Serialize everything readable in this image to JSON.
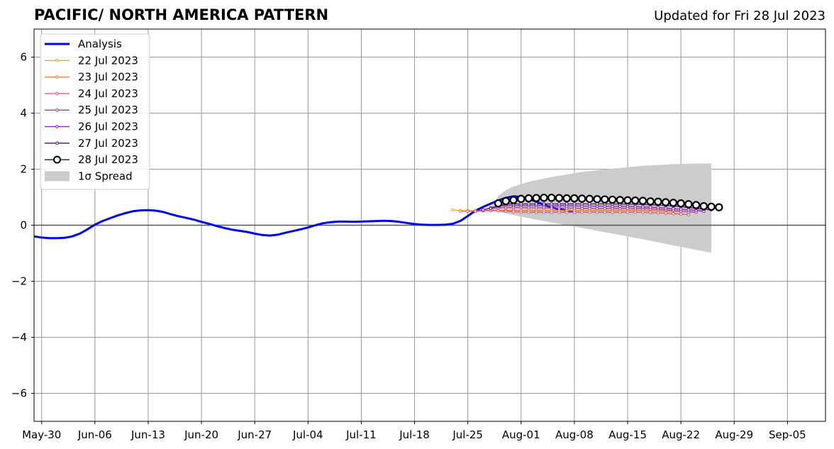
{
  "title": "PACIFIC/ NORTH AMERICA PATTERN",
  "subtitle": "Updated for Fri 28 Jul 2023",
  "chart_data": {
    "type": "line",
    "ylim": [
      -7,
      7
    ],
    "yticks": [
      6,
      4,
      2,
      0,
      -2,
      -4,
      -6
    ],
    "ytick_labels": [
      "6",
      "4",
      "2",
      "0",
      "−2",
      "−4",
      "−6"
    ],
    "xlim": [
      "2023-05-29",
      "2023-09-10"
    ],
    "xticks": [
      "2023-05-30",
      "2023-06-06",
      "2023-06-13",
      "2023-06-20",
      "2023-06-27",
      "2023-07-04",
      "2023-07-11",
      "2023-07-18",
      "2023-07-25",
      "2023-08-01",
      "2023-08-08",
      "2023-08-15",
      "2023-08-22",
      "2023-08-29",
      "2023-09-05"
    ],
    "xtick_labels": [
      "May-30",
      "Jun-06",
      "Jun-13",
      "Jun-20",
      "Jun-27",
      "Jul-04",
      "Jul-11",
      "Jul-18",
      "Jul-25",
      "Aug-01",
      "Aug-08",
      "Aug-15",
      "Aug-22",
      "Aug-29",
      "Sep-05"
    ],
    "grid": true,
    "legend_position": "upper-left",
    "colors": {
      "analysis": "#0000ee",
      "spread": "#cccccc",
      "grid": "#999999",
      "zero_line": "#555555"
    },
    "analysis": {
      "name": "Analysis",
      "start": "2023-05-29",
      "values": [
        -0.4,
        -0.44,
        -0.46,
        -0.46,
        -0.45,
        -0.4,
        -0.3,
        -0.15,
        0.02,
        0.15,
        0.25,
        0.35,
        0.43,
        0.5,
        0.53,
        0.54,
        0.52,
        0.47,
        0.39,
        0.32,
        0.26,
        0.2,
        0.12,
        0.05,
        -0.03,
        -0.1,
        -0.16,
        -0.2,
        -0.24,
        -0.3,
        -0.35,
        -0.37,
        -0.34,
        -0.27,
        -0.21,
        -0.15,
        -0.08,
        0.0,
        0.07,
        0.11,
        0.13,
        0.13,
        0.12,
        0.13,
        0.14,
        0.15,
        0.16,
        0.15,
        0.12,
        0.08,
        0.04,
        0.02,
        0.01,
        0.01,
        0.02,
        0.05,
        0.15,
        0.33,
        0.52,
        0.65,
        0.77,
        0.88,
        0.98,
        1.03,
        1.01,
        0.94,
        0.84,
        0.73,
        0.64,
        0.57,
        0.52,
        0.5
      ]
    },
    "forecasts": [
      {
        "name": "22 Jul 2023",
        "color": "#f5a623",
        "start": "2023-07-23",
        "values": [
          0.55,
          0.52,
          0.52,
          0.52,
          0.52,
          0.52,
          0.52,
          0.52,
          0.52,
          0.52,
          0.52,
          0.52,
          0.52,
          0.52,
          0.52,
          0.52,
          0.52,
          0.52,
          0.52,
          0.52,
          0.52,
          0.52,
          0.52,
          0.52,
          0.52,
          0.52,
          0.52,
          0.52,
          0.52,
          0.52
        ]
      },
      {
        "name": "23 Jul 2023",
        "color": "#f07a3c",
        "start": "2023-07-24",
        "values": [
          0.5,
          0.5,
          0.5,
          0.51,
          0.52,
          0.52,
          0.53,
          0.53,
          0.53,
          0.53,
          0.53,
          0.53,
          0.53,
          0.53,
          0.53,
          0.53,
          0.53,
          0.53,
          0.53,
          0.53,
          0.53,
          0.53,
          0.53,
          0.53,
          0.52,
          0.52,
          0.51,
          0.5,
          0.5,
          0.5
        ]
      },
      {
        "name": "24 Jul 2023",
        "color": "#e0536a",
        "start": "2023-07-25",
        "values": [
          0.5,
          0.5,
          0.52,
          0.54,
          0.52,
          0.5,
          0.48,
          0.47,
          0.46,
          0.46,
          0.46,
          0.46,
          0.46,
          0.46,
          0.46,
          0.46,
          0.46,
          0.46,
          0.46,
          0.46,
          0.46,
          0.46,
          0.46,
          0.46,
          0.45,
          0.44,
          0.43,
          0.41,
          0.4,
          0.38
        ]
      },
      {
        "name": "25 Jul 2023",
        "color": "#b3378a",
        "start": "2023-07-26",
        "values": [
          0.5,
          0.55,
          0.6,
          0.62,
          0.63,
          0.63,
          0.63,
          0.62,
          0.62,
          0.62,
          0.61,
          0.61,
          0.61,
          0.61,
          0.6,
          0.6,
          0.6,
          0.6,
          0.6,
          0.6,
          0.6,
          0.59,
          0.59,
          0.58,
          0.57,
          0.55,
          0.53,
          0.5,
          0.48,
          0.46
        ]
      },
      {
        "name": "26 Jul 2023",
        "color": "#8122a8",
        "start": "2023-07-27",
        "values": [
          0.55,
          0.62,
          0.68,
          0.7,
          0.7,
          0.7,
          0.7,
          0.7,
          0.7,
          0.69,
          0.69,
          0.69,
          0.69,
          0.68,
          0.68,
          0.68,
          0.68,
          0.67,
          0.67,
          0.67,
          0.66,
          0.65,
          0.64,
          0.63,
          0.61,
          0.59,
          0.57,
          0.55,
          0.53,
          0.5
        ]
      },
      {
        "name": "27 Jul 2023",
        "color": "#4b0f80",
        "start": "2023-07-28",
        "values": [
          0.6,
          0.7,
          0.75,
          0.76,
          0.76,
          0.76,
          0.76,
          0.76,
          0.76,
          0.76,
          0.76,
          0.76,
          0.76,
          0.76,
          0.76,
          0.76,
          0.76,
          0.75,
          0.75,
          0.75,
          0.74,
          0.73,
          0.72,
          0.7,
          0.68,
          0.66,
          0.63,
          0.6,
          0.57,
          0.55
        ]
      },
      {
        "name": "28 Jul 2023",
        "color": "#000000",
        "marker": "open-circle",
        "start": "2023-07-29",
        "values": [
          0.78,
          0.86,
          0.9,
          0.94,
          0.96,
          0.97,
          0.98,
          0.98,
          0.97,
          0.96,
          0.96,
          0.95,
          0.94,
          0.93,
          0.92,
          0.91,
          0.9,
          0.89,
          0.88,
          0.87,
          0.85,
          0.84,
          0.82,
          0.8,
          0.78,
          0.75,
          0.72,
          0.68,
          0.66,
          0.64
        ]
      }
    ],
    "spread": {
      "label": "1σ Spread",
      "start": "2023-07-28",
      "end": "2023-08-26",
      "upper": [
        [
          0,
          0.6
        ],
        [
          1,
          1.05
        ],
        [
          2,
          1.25
        ],
        [
          3,
          1.38
        ],
        [
          5,
          1.55
        ],
        [
          8,
          1.72
        ],
        [
          12,
          1.9
        ],
        [
          16,
          2.02
        ],
        [
          20,
          2.12
        ],
        [
          24,
          2.18
        ],
        [
          27,
          2.2
        ],
        [
          29,
          2.2
        ]
      ],
      "lower": [
        [
          0,
          0.52
        ],
        [
          2,
          0.42
        ],
        [
          5,
          0.25
        ],
        [
          8,
          0.1
        ],
        [
          12,
          -0.1
        ],
        [
          16,
          -0.3
        ],
        [
          20,
          -0.5
        ],
        [
          24,
          -0.72
        ],
        [
          27,
          -0.88
        ],
        [
          29,
          -0.98
        ]
      ]
    }
  }
}
